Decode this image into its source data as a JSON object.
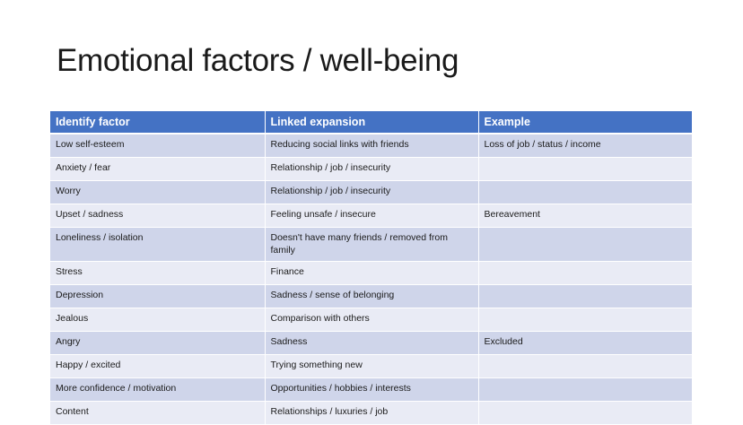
{
  "slide": {
    "title": "Emotional factors / well-being"
  },
  "table": {
    "headers": [
      "Identify factor",
      "Linked expansion",
      "Example"
    ],
    "rows": [
      [
        "Low self-esteem",
        "Reducing social links with friends",
        "Loss of job / status / income"
      ],
      [
        "Anxiety / fear",
        "Relationship / job / insecurity",
        ""
      ],
      [
        "Worry",
        "Relationship / job / insecurity",
        ""
      ],
      [
        "Upset / sadness",
        "Feeling unsafe / insecure",
        "Bereavement"
      ],
      [
        "Loneliness / isolation",
        "Doesn't have many friends / removed from family",
        ""
      ],
      [
        "Stress",
        "Finance",
        ""
      ],
      [
        "Depression",
        "Sadness / sense of belonging",
        ""
      ],
      [
        "Jealous",
        "Comparison with others",
        ""
      ],
      [
        "Angry",
        "Sadness",
        "Excluded"
      ],
      [
        "Happy / excited",
        "Trying something new",
        ""
      ],
      [
        "More confidence / motivation",
        "Opportunities / hobbies / interests",
        ""
      ],
      [
        "Content",
        "Relationships / luxuries / job",
        ""
      ]
    ]
  },
  "colors": {
    "header_bg": "#4472c4",
    "row_odd_bg": "#cfd5ea",
    "row_even_bg": "#e9ebf5"
  }
}
